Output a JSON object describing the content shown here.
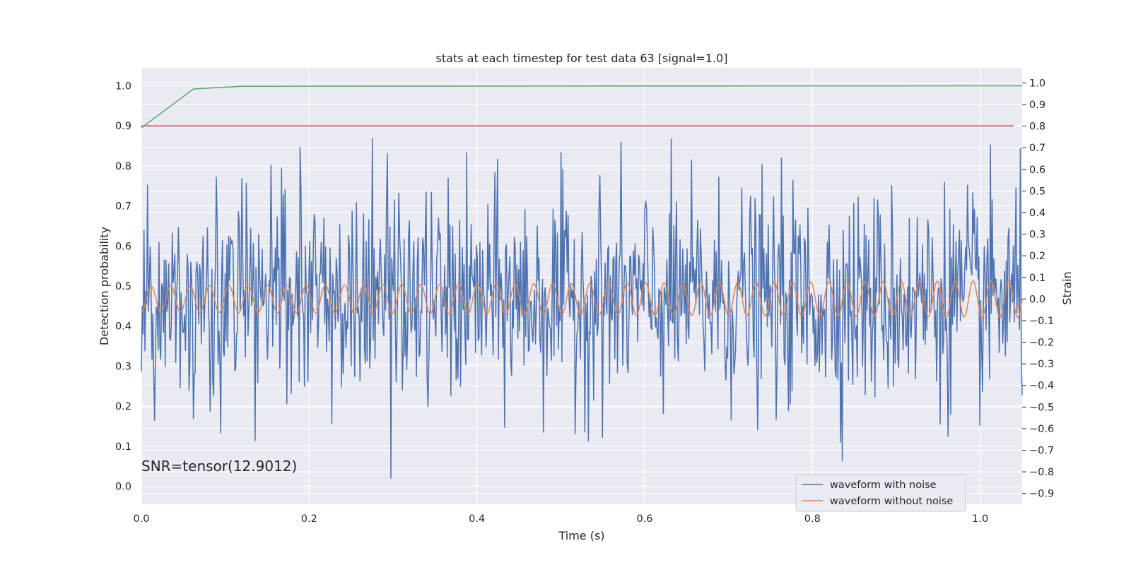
{
  "chart_data": {
    "type": "line",
    "title": "stats at each timestep for test data 63 [signal=1.0]",
    "xlabel": "Time (s)",
    "ylabel_left": "Detection probability",
    "ylabel_right": "Strain",
    "xlim": [
      0.0,
      1.05
    ],
    "ylim_left": [
      -0.045,
      1.045
    ],
    "ylim_right": [
      -0.95,
      1.07
    ],
    "x_ticks": [
      "0.0",
      "0.2",
      "0.4",
      "0.6",
      "0.8",
      "1.0"
    ],
    "x_tick_values": [
      0.0,
      0.2,
      0.4,
      0.6,
      0.8,
      1.0
    ],
    "y_left_ticks": [
      "0.0",
      "0.1",
      "0.2",
      "0.3",
      "0.4",
      "0.5",
      "0.6",
      "0.7",
      "0.8",
      "0.9",
      "1.0"
    ],
    "y_left_tick_values": [
      0.0,
      0.1,
      0.2,
      0.3,
      0.4,
      0.5,
      0.6,
      0.7,
      0.8,
      0.9,
      1.0
    ],
    "y_right_ticks": [
      "−0.9",
      "−0.8",
      "−0.7",
      "−0.6",
      "−0.5",
      "−0.4",
      "−0.3",
      "−0.2",
      "−0.1",
      "0.0",
      "0.1",
      "0.2",
      "0.3",
      "0.4",
      "0.5",
      "0.6",
      "0.7",
      "0.8",
      "0.9",
      "1.0"
    ],
    "y_right_tick_values": [
      -0.9,
      -0.8,
      -0.7,
      -0.6,
      -0.5,
      -0.4,
      -0.3,
      -0.2,
      -0.1,
      0.0,
      0.1,
      0.2,
      0.3,
      0.4,
      0.5,
      0.6,
      0.7,
      0.8,
      0.9,
      1.0
    ],
    "grid": true,
    "legend_position": "lower-right",
    "annotation": "SNR=tensor(12.9012)",
    "series": [
      {
        "name": "waveform with noise",
        "axis": "right",
        "color": "#4c72b0",
        "x_range": [
          0.0,
          1.05
        ],
        "n_points": 1000,
        "y_range_approx": [
          -0.85,
          0.83
        ]
      },
      {
        "name": "waveform without noise",
        "axis": "right",
        "color": "#dd8452",
        "x_range": [
          0.0,
          1.05
        ],
        "cycles": 45,
        "amplitude_start": 0.06,
        "amplitude_end": 0.085
      },
      {
        "axis": "left",
        "color": "#55a868",
        "x": [
          0.0,
          0.062,
          0.12,
          1.05
        ],
        "y": [
          0.895,
          0.992,
          0.999,
          1.0
        ]
      },
      {
        "axis": "left",
        "color": "#c44e52",
        "x": [
          0.0,
          1.04
        ],
        "y": [
          0.9,
          0.9
        ]
      }
    ]
  },
  "colors": {
    "plot_background": "#eaeaf2",
    "grid": "#ffffff",
    "text": "#262626"
  }
}
